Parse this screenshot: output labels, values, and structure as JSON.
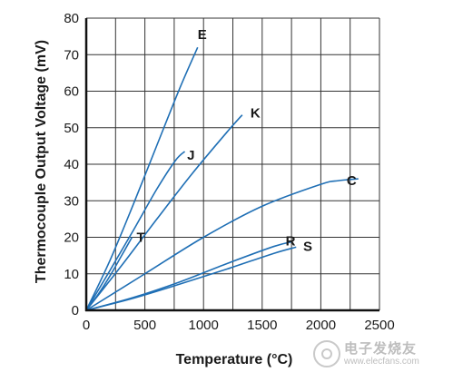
{
  "chart_data": {
    "type": "line",
    "xlabel": "Temperature (°C)",
    "ylabel": "Thermocouple Output Voltage (mV)",
    "xlim": [
      0,
      2500
    ],
    "ylim": [
      0,
      80
    ],
    "xticks": [
      0,
      500,
      1000,
      1500,
      2000,
      2500
    ],
    "yticks": [
      0,
      10,
      20,
      30,
      40,
      50,
      60,
      70,
      80
    ],
    "grid": true,
    "line_color": "#1f6fb5",
    "series": [
      {
        "name": "E",
        "x": [
          0,
          200,
          400,
          600,
          800,
          950
        ],
        "y": [
          0,
          13.5,
          28.9,
          45.0,
          61.0,
          72.0
        ]
      },
      {
        "name": "K",
        "x": [
          0,
          300,
          600,
          900,
          1200,
          1330
        ],
        "y": [
          0,
          12.2,
          24.9,
          37.3,
          48.8,
          53.5
        ]
      },
      {
        "name": "J",
        "x": [
          0,
          200,
          400,
          600,
          760,
          840
        ],
        "y": [
          0,
          10.8,
          21.8,
          33.1,
          41.0,
          43.5
        ]
      },
      {
        "name": "T",
        "x": [
          0,
          100,
          200,
          300,
          390
        ],
        "y": [
          0,
          4.3,
          9.3,
          14.9,
          20.0
        ]
      },
      {
        "name": "C",
        "x": [
          0,
          500,
          1000,
          1500,
          2000,
          2150,
          2320
        ],
        "y": [
          0,
          10.0,
          20.0,
          28.5,
          34.5,
          35.5,
          36.0
        ]
      },
      {
        "name": "R",
        "x": [
          0,
          400,
          800,
          1200,
          1600,
          1760
        ],
        "y": [
          0,
          3.5,
          7.8,
          12.8,
          17.5,
          18.8
        ]
      },
      {
        "name": "S",
        "x": [
          0,
          400,
          800,
          1200,
          1600,
          1790
        ],
        "y": [
          0,
          3.3,
          7.2,
          11.3,
          15.6,
          17.3
        ]
      }
    ],
    "labels": [
      {
        "text": "E",
        "x": 950,
        "y": 75.5
      },
      {
        "text": "K",
        "x": 1400,
        "y": 54.0
      },
      {
        "text": "J",
        "x": 860,
        "y": 42.5
      },
      {
        "text": "T",
        "x": 430,
        "y": 20.0
      },
      {
        "text": "C",
        "x": 2220,
        "y": 35.5
      },
      {
        "text": "R",
        "x": 1700,
        "y": 19.0
      },
      {
        "text": "S",
        "x": 1850,
        "y": 17.5
      }
    ]
  },
  "watermark": {
    "text": "电子发烧友",
    "url": "www.elecfans.com"
  }
}
